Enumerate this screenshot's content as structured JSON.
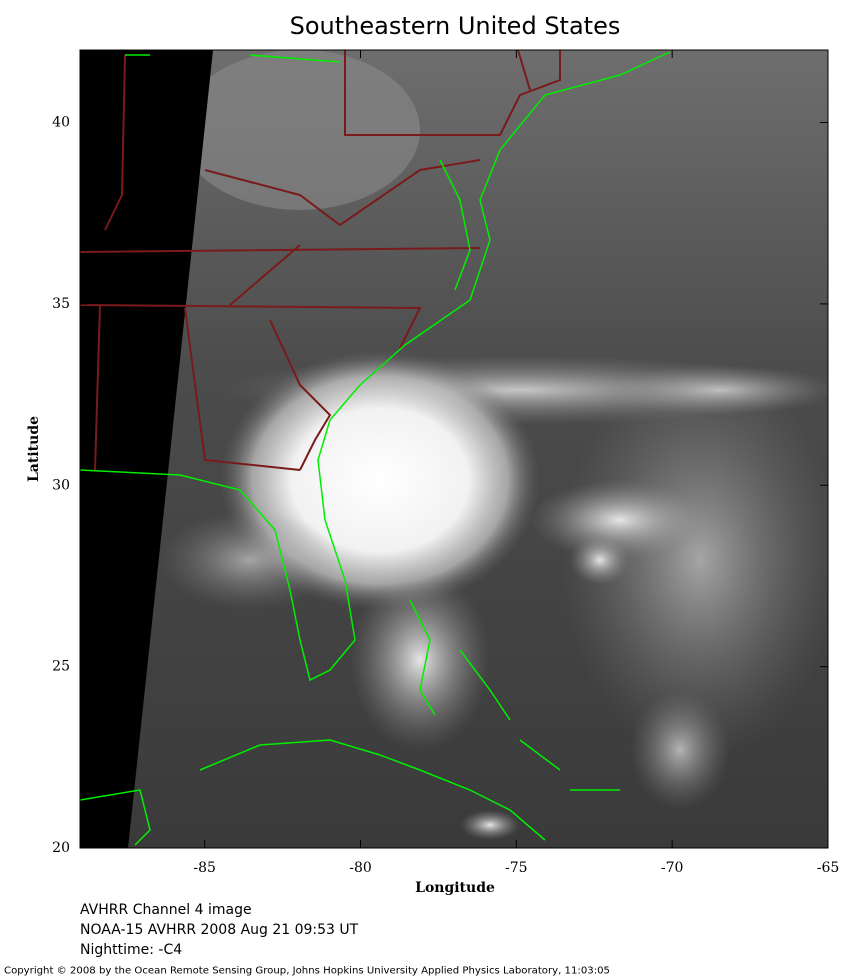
{
  "map": {
    "title": "Southeastern United States",
    "xlabel": "Longitude",
    "ylabel": "Latitude",
    "xlim": [
      -89,
      -65
    ],
    "ylim": [
      20,
      42
    ],
    "xticks": [
      -85,
      -80,
      -75,
      -70,
      -65
    ],
    "yticks": [
      20,
      25,
      30,
      35,
      40
    ]
  },
  "caption": [
    "AVHRR Channel 4 image",
    "NOAA-15 AVHRR 2008 Aug 21 09:53 UT",
    "Nighttime: -C4"
  ],
  "copyright": "Copyright © 2008 by the Ocean Remote Sensing Group, Johns Hopkins University Applied Physics Laboratory, 11:03:05"
}
